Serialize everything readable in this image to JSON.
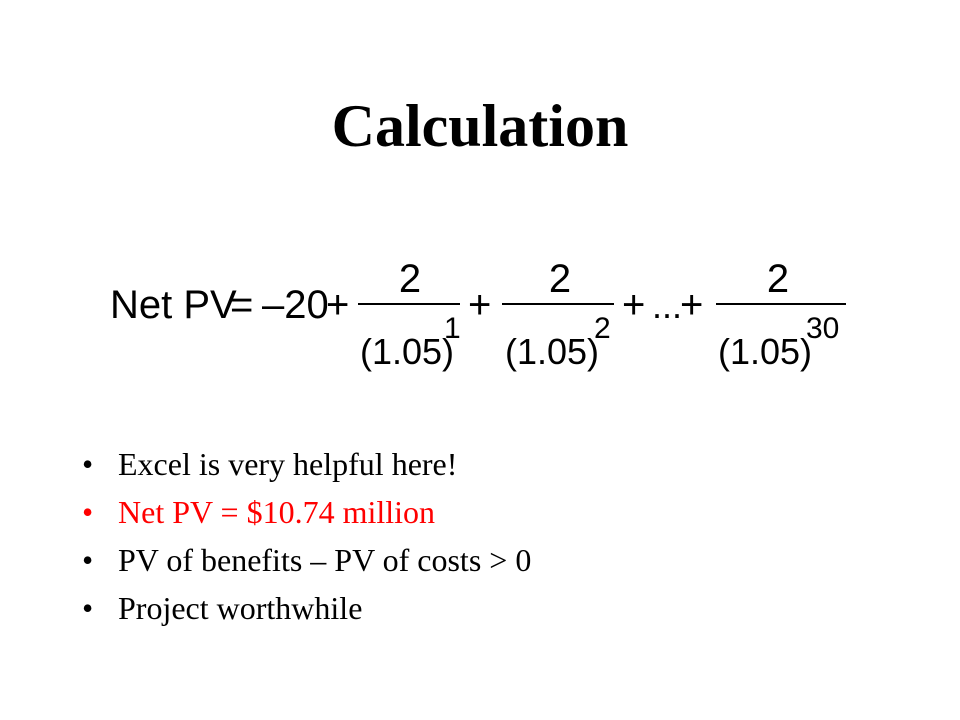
{
  "slide": {
    "title": "Calculation",
    "formula": {
      "lhs": "Net PV",
      "equals": "=",
      "initial_cost": "–20",
      "plus": "+",
      "ellipsis": "...",
      "terms": [
        {
          "numerator": "2",
          "base": "(1.05)",
          "exponent": "1"
        },
        {
          "numerator": "2",
          "base": "(1.05)",
          "exponent": "2"
        },
        {
          "numerator": "2",
          "base": "(1.05)",
          "exponent": "30"
        }
      ]
    },
    "bullet_symbol": "•",
    "bullets": [
      {
        "text": "Excel is very helpful here!",
        "color": "#000000"
      },
      {
        "text": "Net PV = $10.74 million",
        "color": "#ff0000"
      },
      {
        "text": "PV of benefits – PV of costs  > 0",
        "color": "#000000"
      },
      {
        "text": "Project worthwhile",
        "color": "#000000"
      }
    ]
  }
}
